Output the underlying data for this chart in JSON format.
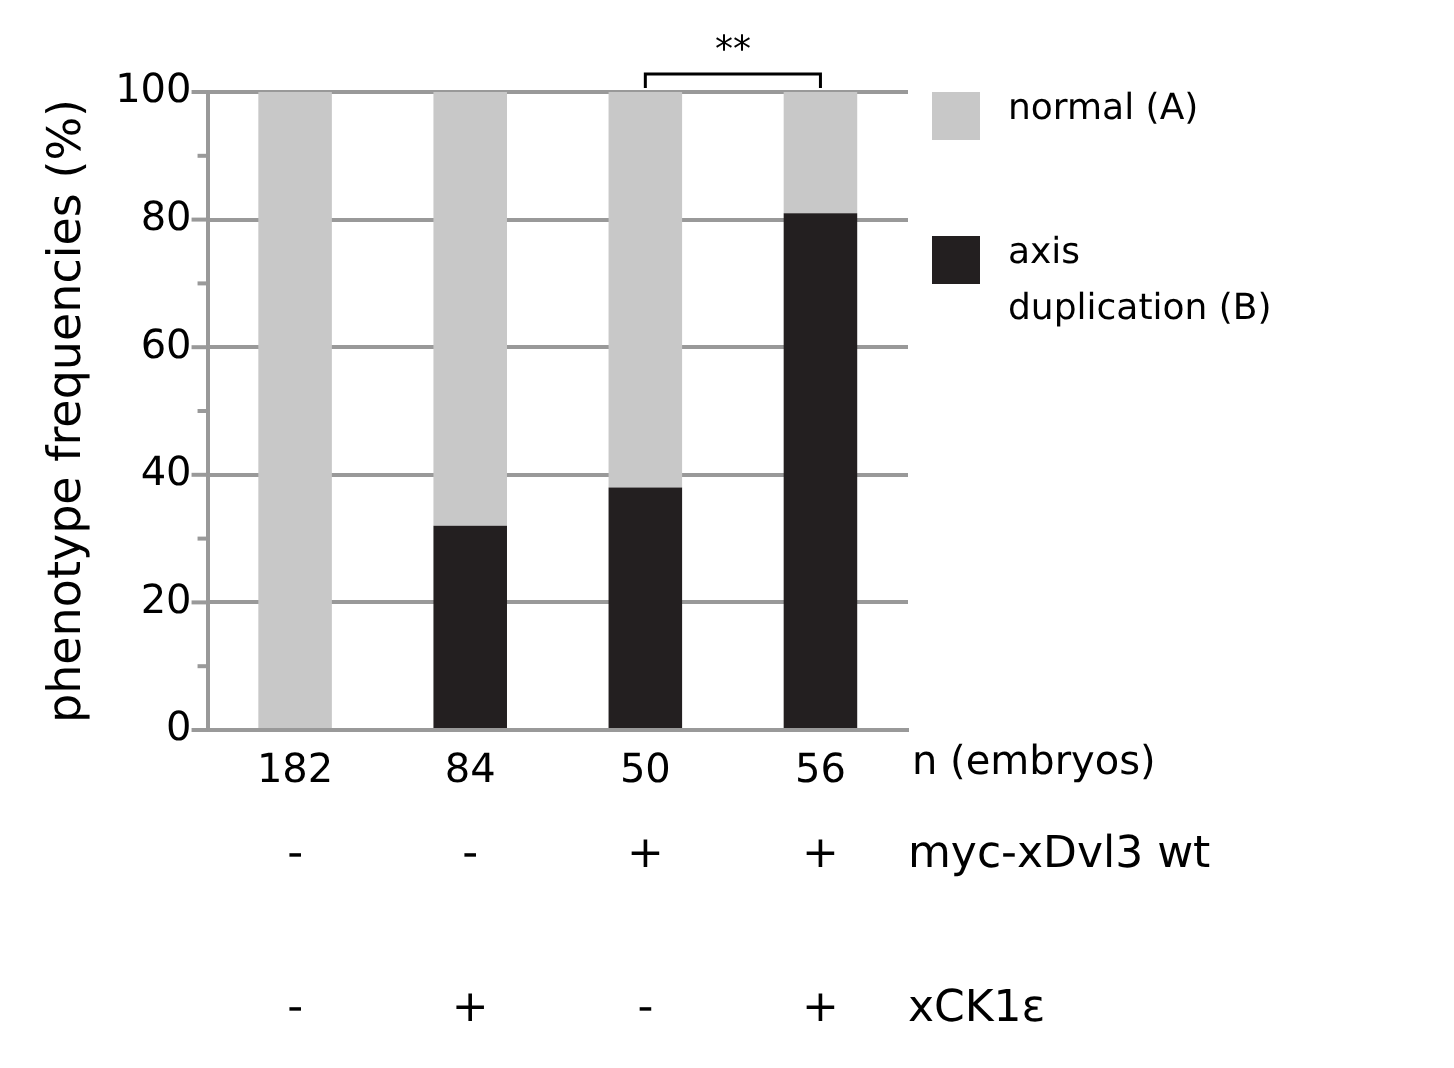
{
  "chart_data": {
    "type": "bar",
    "stacked": true,
    "ylabel": "phenotype frequencies (%)",
    "xlabel": "n (embryos)",
    "categories": [
      "182",
      "84",
      "50",
      "56"
    ],
    "series": [
      {
        "name": "axis duplication (B)",
        "color": "#231f20",
        "values": [
          0,
          32,
          38,
          81
        ]
      },
      {
        "name": "normal (A)",
        "color": "#c8c8c8",
        "values": [
          100,
          68,
          62,
          19
        ]
      }
    ],
    "ylim": [
      0,
      100
    ],
    "yticks": [
      0,
      {
        "value": 10,
        "label": null
      },
      20,
      {
        "value": 30,
        "label": null
      },
      40,
      {
        "value": 50,
        "label": null
      },
      60,
      {
        "value": 70,
        "label": null
      },
      80,
      {
        "value": 90,
        "label": null
      },
      100
    ],
    "grid": "y",
    "legend": "top right",
    "annotations": [
      "**",
      "myc-xDvl3 wt",
      "-",
      "-",
      "+",
      "+",
      "xCK1ε",
      "-",
      "+",
      "-",
      "+"
    ]
  }
}
